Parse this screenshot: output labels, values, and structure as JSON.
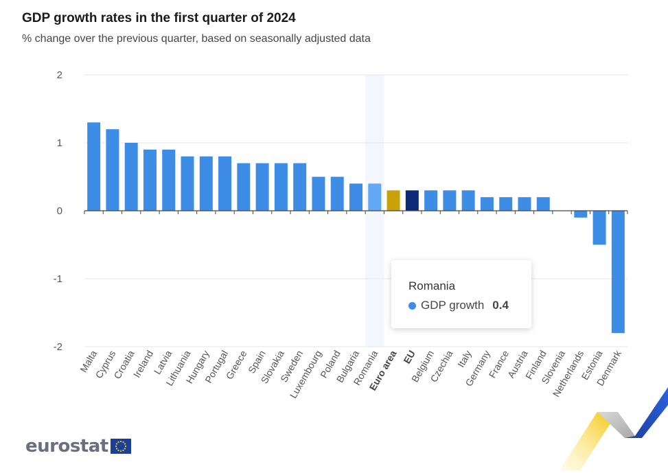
{
  "header": {
    "title": "GDP growth rates in the first quarter of 2024",
    "subtitle": "% change over the previous quarter, based on seasonally adjusted data"
  },
  "tooltip": {
    "country": "Romania",
    "series_label": "GDP growth",
    "value": "0.4"
  },
  "logo": {
    "text": "eurostat"
  },
  "colors": {
    "country_bar": "#3d8de6",
    "highlight_bar": "#62a8f5",
    "euro_area_bar": "#c9a20a",
    "eu_bar": "#0b2a78",
    "hover_band": "#f3f6fc",
    "grid": "#e6e6e6"
  },
  "chart_data": {
    "type": "bar",
    "title": "GDP growth rates in the first quarter of 2024",
    "subtitle": "% change over the previous quarter, based on seasonally adjusted data",
    "xlabel": "",
    "ylabel": "",
    "ylim": [
      -2,
      2
    ],
    "yticks": [
      2,
      1,
      0,
      -1,
      -2
    ],
    "grid": true,
    "categories": [
      "Malta",
      "Cyprus",
      "Croatia",
      "Ireland",
      "Latvia",
      "Lithuania",
      "Hungary",
      "Portugal",
      "Greece",
      "Spain",
      "Slovakia",
      "Sweden",
      "Luxembourg",
      "Poland",
      "Bulgaria",
      "Romania",
      "Euro area",
      "EU",
      "Belgium",
      "Czechia",
      "Italy",
      "Germany",
      "France",
      "Austria",
      "Finland",
      "Slovenia",
      "Netherlands",
      "Estonia",
      "Denmark"
    ],
    "series": [
      {
        "name": "GDP growth",
        "values": [
          1.3,
          1.2,
          1.0,
          0.9,
          0.9,
          0.8,
          0.8,
          0.8,
          0.7,
          0.7,
          0.7,
          0.7,
          0.5,
          0.5,
          0.4,
          0.4,
          0.3,
          0.3,
          0.3,
          0.3,
          0.3,
          0.2,
          0.2,
          0.2,
          0.2,
          0.0,
          -0.1,
          -0.5,
          -1.8
        ]
      }
    ],
    "bold_categories": [
      "Euro area",
      "EU"
    ],
    "highlighted_category": "Romania"
  }
}
